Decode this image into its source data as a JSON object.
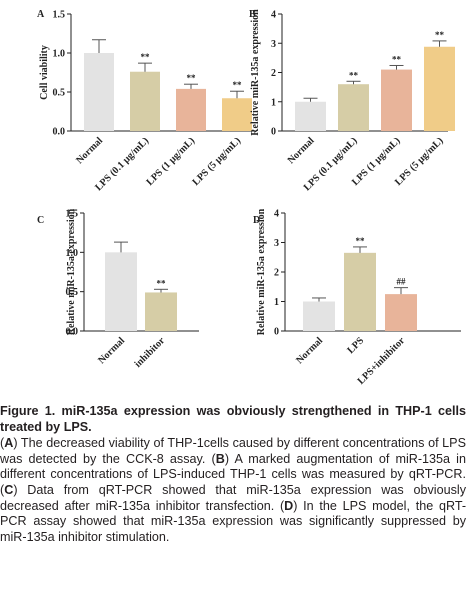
{
  "colors": {
    "normal": "#e3e3e3",
    "lps_low": "#d6cda6",
    "lps_mid": "#e8b49a",
    "lps_high": "#f0cc88",
    "axis": "#222222",
    "errorbar": "#555555"
  },
  "chart_data": [
    {
      "panel": "A",
      "type": "bar",
      "ylabel": "Cell viability",
      "ylim": [
        0,
        1.5
      ],
      "yticks": [
        "0.0",
        "0.5",
        "1.0",
        "1.5"
      ],
      "categories": [
        "Normal",
        "LPS (0.1 μg/mL)",
        "LPS (1 μg/mL)",
        "LPS (5 μg/mL)"
      ],
      "values": [
        1.0,
        0.76,
        0.54,
        0.42
      ],
      "errors": [
        0.17,
        0.11,
        0.06,
        0.09
      ],
      "marks": [
        "",
        "**",
        "**",
        "**"
      ],
      "bar_colors": [
        "#e3e3e3",
        "#d6cda6",
        "#e8b49a",
        "#f0cc88"
      ]
    },
    {
      "panel": "B",
      "type": "bar",
      "ylabel": "Relative miR-135a expression",
      "ylim": [
        0,
        4
      ],
      "yticks": [
        "0",
        "1",
        "2",
        "3",
        "4"
      ],
      "categories": [
        "Normal",
        "LPS (0.1 μg/mL)",
        "LPS (1 μg/mL)",
        "LPS (5 μg/mL)"
      ],
      "values": [
        1.0,
        1.6,
        2.1,
        2.88
      ],
      "errors": [
        0.12,
        0.1,
        0.14,
        0.2
      ],
      "marks": [
        "",
        "**",
        "**",
        "**"
      ],
      "bar_colors": [
        "#e3e3e3",
        "#d6cda6",
        "#e8b49a",
        "#f0cc88"
      ]
    },
    {
      "panel": "C",
      "type": "bar",
      "ylabel": "Relative miR-135a expression",
      "ylim": [
        0,
        1.5
      ],
      "yticks": [
        "0.0",
        "0.5",
        "1.0",
        "1.5"
      ],
      "categories": [
        "Normal",
        "inhibitor"
      ],
      "values": [
        1.0,
        0.49
      ],
      "errors": [
        0.13,
        0.04
      ],
      "marks": [
        "",
        "**"
      ],
      "bar_colors": [
        "#e3e3e3",
        "#d6cda6"
      ]
    },
    {
      "panel": "D",
      "type": "bar",
      "ylabel": "Relative miR-135a expression",
      "ylim": [
        0,
        4
      ],
      "yticks": [
        "0",
        "1",
        "2",
        "3",
        "4"
      ],
      "categories": [
        "Normal",
        "LPS",
        "LPS+inhibitor"
      ],
      "values": [
        1.0,
        2.65,
        1.25
      ],
      "errors": [
        0.12,
        0.2,
        0.22
      ],
      "marks": [
        "",
        "**",
        "##"
      ],
      "bar_colors": [
        "#e3e3e3",
        "#d6cda6",
        "#e8b49a"
      ]
    }
  ],
  "caption": {
    "title": "Figure 1. miR-135a expression was obviously strengthened in THP-1 cells treated by LPS.",
    "body_parts": [
      {
        "text": "(",
        "bold": false
      },
      {
        "text": "A",
        "bold": true
      },
      {
        "text": ") The decreased viability of THP-1cells caused by different concentrations of LPS was detected by the CCK-8 assay. (",
        "bold": false
      },
      {
        "text": "B",
        "bold": true
      },
      {
        "text": ") A marked augmentation of miR-135a in different concentrations of LPS-induced THP-1 cells was measured by qRT-PCR. (",
        "bold": false
      },
      {
        "text": "C",
        "bold": true
      },
      {
        "text": ") Data from qRT-PCR showed that miR-135a expression was obviously decreased after miR-135a inhibitor transfection. (",
        "bold": false
      },
      {
        "text": "D",
        "bold": true
      },
      {
        "text": ") In the LPS model, the qRT-PCR assay showed that miR-135a expression was significantly suppressed by miR-135a inhibitor stimulation.",
        "bold": false
      }
    ]
  }
}
